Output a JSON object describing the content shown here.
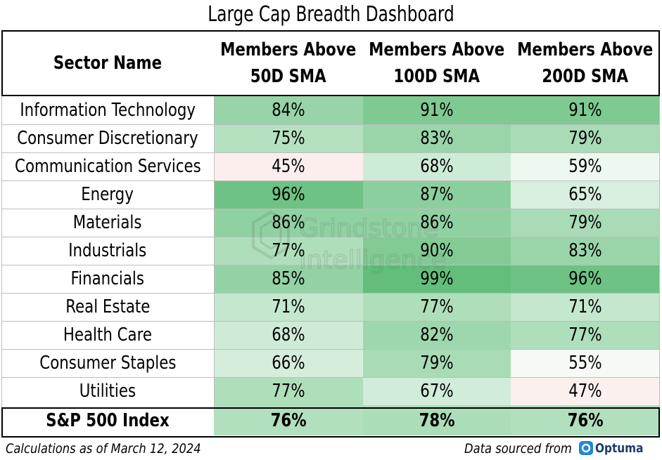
{
  "title": "Large Cap Breadth Dashboard",
  "chart_data": {
    "type": "table",
    "title": "Large Cap Breadth Dashboard",
    "columns": [
      "Sector Name",
      "Members Above 50D SMA",
      "Members Above 100D SMA",
      "Members Above 200D SMA"
    ],
    "header_lines": [
      [
        "Sector Name"
      ],
      [
        "Members Above",
        "50D SMA"
      ],
      [
        "Members Above",
        "100D SMA"
      ],
      [
        "Members Above",
        "200D SMA"
      ]
    ],
    "rows": [
      {
        "sector": "Information Technology",
        "values": [
          84,
          91,
          91
        ]
      },
      {
        "sector": "Consumer Discretionary",
        "values": [
          75,
          83,
          79
        ]
      },
      {
        "sector": "Communication Services",
        "values": [
          45,
          68,
          59
        ]
      },
      {
        "sector": "Energy",
        "values": [
          96,
          87,
          65
        ]
      },
      {
        "sector": "Materials",
        "values": [
          86,
          86,
          79
        ]
      },
      {
        "sector": "Industrials",
        "values": [
          77,
          90,
          83
        ]
      },
      {
        "sector": "Financials",
        "values": [
          85,
          99,
          96
        ]
      },
      {
        "sector": "Real Estate",
        "values": [
          71,
          77,
          71
        ]
      },
      {
        "sector": "Health Care",
        "values": [
          68,
          82,
          77
        ]
      },
      {
        "sector": "Consumer Staples",
        "values": [
          66,
          79,
          55
        ]
      },
      {
        "sector": "Utilities",
        "values": [
          77,
          67,
          47
        ]
      }
    ],
    "total_row": {
      "sector": "S&P 500 Index",
      "values": [
        76,
        78,
        76
      ]
    },
    "value_suffix": "%",
    "color_scale": {
      "low": "#fdeeee",
      "mid": "#f4fbf6",
      "high": "#63be7b"
    }
  },
  "footer": {
    "left": "Calculations as of March 12, 2024",
    "right": "Data sourced from",
    "logo_text": "Optuma"
  },
  "watermark_text": "Grindstone Intelligence"
}
